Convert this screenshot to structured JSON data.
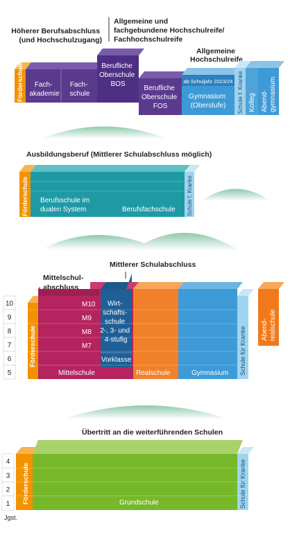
{
  "headings": {
    "hoeherer": [
      "Höherer Berufsabschluss",
      "(und Hochschulzugang)"
    ],
    "allgemeine_fach": [
      "Allgemeine und",
      "fachgebundene Hochschulreife/",
      "Fachhochschulreife"
    ],
    "allgemeine_hr": [
      "Allgemeine",
      "Hochschulreife"
    ],
    "ausbildung": "Ausbildungsberuf (Mittlerer Schulabschluss möglich)",
    "mittlerer": "Mittlerer Schulabschluss",
    "mittelschulabschluss": [
      "Mittelschul-",
      "abschluss"
    ],
    "uebertritt": "Übertritt an die weiterführenden Schulen"
  },
  "tier1": {
    "foerderschule": "Förderschule",
    "fachakademie": [
      "Fach-",
      "akademie"
    ],
    "fachschule": [
      "Fach-",
      "schule"
    ],
    "bos": [
      "Berufliche",
      "Oberschule",
      "BOS"
    ],
    "fos": [
      "Berufliche",
      "Oberschule",
      "FOS"
    ],
    "ab_schuljahr": "ab Schuljahr 2023/24",
    "gymnasium": [
      "Gymnasium",
      "(Oberstufe)"
    ],
    "schule_kranke": "Schule f. Kranke",
    "kolleg": "Kolleg",
    "abendgymnasium": [
      "Abend-",
      "gymnasium"
    ]
  },
  "tier2": {
    "foerderschule": "Förderschule",
    "berufsschule": [
      "Berufsschule im",
      "dualen System"
    ],
    "berufsfachschule": "Berufsfachschule",
    "schule_kranke": "Schule f. Kranke"
  },
  "tier3": {
    "grades": [
      "10",
      "9",
      "8",
      "7",
      "6",
      "5"
    ],
    "foerderschule": "Förderschule",
    "m_levels": [
      "M10",
      "M9",
      "M8",
      "M7"
    ],
    "wirtschaftsschule": [
      "Wirt-",
      "schafts-",
      "schule",
      "2-, 3- und",
      "4-stufig"
    ],
    "vorklasse": "Vorklasse",
    "mittelschule": "Mittelschule",
    "realschule": "Realschule",
    "gymnasium": "Gymnasium",
    "schule_kranke": "Schule für Kranke",
    "abendrealschule": [
      "Abend-",
      "realschule"
    ]
  },
  "tier4": {
    "grades": [
      "4",
      "3",
      "2",
      "1"
    ],
    "foerderschule": "Förderschule",
    "grundschule": "Grundschule",
    "schule_kranke": "Schule für Kranke"
  },
  "jgst": "Jgst.",
  "colors": {
    "orange": "#f39200",
    "purple": "#5b3a8e",
    "purple_top": "#7a5cab",
    "blue": "#4fa3d9",
    "blue_top": "#8cc4e8",
    "light_blue": "#9fd3ee",
    "teal": "#1f9aa5",
    "teal_top": "#5fbfc5",
    "magenta": "#b5245f",
    "mint": "#4fa38d",
    "green": "#76b82a",
    "green_top": "#a8d36b",
    "hill": "#a9d6c2"
  }
}
